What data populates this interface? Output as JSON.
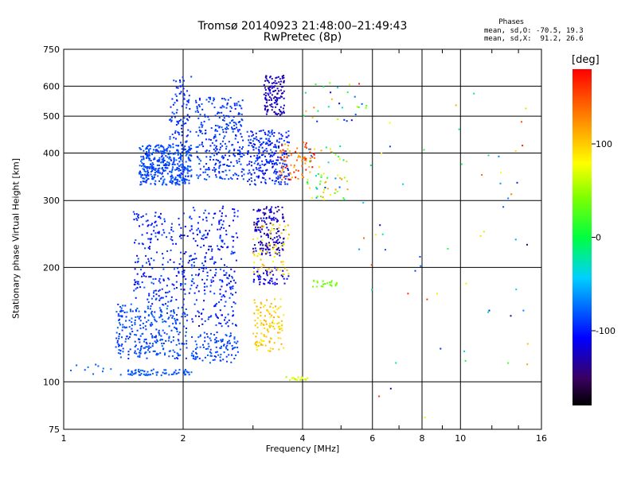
{
  "chart_data": {
    "type": "scatter",
    "title": "Tromsø 20140923 21:48:00–21:49:43",
    "subtitle": "RwPretec (8p)",
    "xlabel": "Frequency [MHz]",
    "ylabel": "Stationary phase Virtual Height [km]",
    "x_scale": "log",
    "y_scale": "log",
    "xlim": [
      1,
      16
    ],
    "ylim": [
      75,
      750
    ],
    "x_ticks": [
      1,
      2,
      4,
      6,
      8,
      10,
      16
    ],
    "y_ticks": [
      75,
      100,
      200,
      300,
      400,
      500,
      600,
      750
    ],
    "grid": true,
    "stats": {
      "title": "Phases",
      "o_mode": "mean, sd,O: -70.5, 19.3",
      "x_mode": "mean, sd,X:  91.2, 26.6"
    },
    "colorbar": {
      "label": "[deg]",
      "ticks": [
        100,
        0,
        -100
      ],
      "range": [
        -180,
        180
      ],
      "colormap": "rainbow"
    },
    "clusters": [
      {
        "x": [
          1.55,
          2.1
        ],
        "y": [
          330,
          420
        ],
        "phase": [
          -95,
          -75
        ],
        "n": 420
      },
      {
        "x": [
          1.85,
          2.1
        ],
        "y": [
          420,
          640
        ],
        "phase": [
          -100,
          -80
        ],
        "n": 90
      },
      {
        "x": [
          2.15,
          2.85
        ],
        "y": [
          340,
          560
        ],
        "phase": [
          -100,
          -78
        ],
        "n": 300
      },
      {
        "x": [
          2.9,
          3.7
        ],
        "y": [
          330,
          460
        ],
        "phase": [
          -110,
          -80
        ],
        "n": 260
      },
      {
        "x": [
          3.2,
          3.6
        ],
        "y": [
          500,
          640
        ],
        "phase": [
          -140,
          -110
        ],
        "n": 130
      },
      {
        "x": [
          1.35,
          2.05
        ],
        "y": [
          115,
          160
        ],
        "phase": [
          -95,
          -75
        ],
        "n": 300
      },
      {
        "x": [
          1.5,
          2.1
        ],
        "y": [
          160,
          280
        ],
        "phase": [
          -115,
          -78
        ],
        "n": 220
      },
      {
        "x": [
          2.1,
          2.75
        ],
        "y": [
          140,
          290
        ],
        "phase": [
          -115,
          -80
        ],
        "n": 260
      },
      {
        "x": [
          2.1,
          2.75
        ],
        "y": [
          112,
          135
        ],
        "phase": [
          -92,
          -78
        ],
        "n": 110
      },
      {
        "x": [
          1.45,
          2.1
        ],
        "y": [
          104,
          108
        ],
        "phase": [
          -85,
          -75
        ],
        "n": 70
      },
      {
        "x": [
          3.0,
          3.6
        ],
        "y": [
          215,
          290
        ],
        "phase": [
          -140,
          -100
        ],
        "n": 160
      },
      {
        "x": [
          3.0,
          3.7
        ],
        "y": [
          180,
          200
        ],
        "phase": [
          -120,
          -105
        ],
        "n": 50
      },
      {
        "x": [
          3.0,
          3.6
        ],
        "y": [
          120,
          165
        ],
        "phase": [
          80,
          120
        ],
        "n": 120
      },
      {
        "x": [
          3.0,
          3.7
        ],
        "y": [
          190,
          260
        ],
        "phase": [
          70,
          120
        ],
        "n": 70
      },
      {
        "x": [
          3.5,
          4.3
        ],
        "y": [
          340,
          430
        ],
        "phase": [
          100,
          180
        ],
        "n": 80
      },
      {
        "x": [
          4.1,
          5.2
        ],
        "y": [
          300,
          420
        ],
        "phase": [
          -100,
          130
        ],
        "n": 60
      },
      {
        "x": [
          4.2,
          4.9
        ],
        "y": [
          178,
          185
        ],
        "phase": [
          30,
          60
        ],
        "n": 25
      },
      {
        "x": [
          3.6,
          4.2
        ],
        "y": [
          101,
          103
        ],
        "phase": [
          50,
          90
        ],
        "n": 20
      },
      {
        "x": [
          1.0,
          1.45
        ],
        "y": [
          104,
          112
        ],
        "phase": [
          -85,
          -70
        ],
        "n": 12
      },
      {
        "x": [
          4.0,
          5.8
        ],
        "y": [
          480,
          620
        ],
        "phase": [
          -140,
          130
        ],
        "n": 30
      },
      {
        "x": [
          5.5,
          15
        ],
        "y": [
          80,
          650
        ],
        "phase": [
          -160,
          170
        ],
        "n": 60
      }
    ]
  }
}
